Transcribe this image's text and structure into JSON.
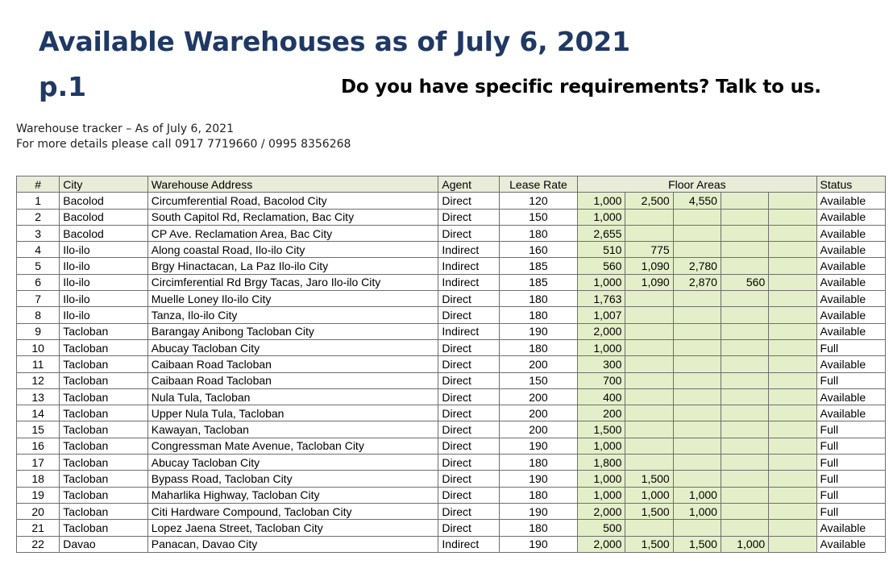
{
  "header": {
    "title": "Available Warehouses as of July 6, 2021",
    "page": "p.1",
    "cta": "Do you have specific requirements? Talk to us."
  },
  "tracker": {
    "line1": "Warehouse tracker – As of July 6, 2021",
    "line2": "For more details please call 0917 7719660 / 0995 8356268"
  },
  "table": {
    "headers": [
      "#",
      "City",
      "Warehouse Address",
      "Agent",
      "Lease Rate",
      "Floor Areas",
      "Status"
    ],
    "rows": [
      {
        "num": "1",
        "city": "Bacolod",
        "address": "Circumferential Road, Bacolod City",
        "agent": "Direct",
        "rate": "120",
        "areas": [
          "1,000",
          "2,500",
          "4,550",
          "",
          ""
        ],
        "status": "Available"
      },
      {
        "num": "2",
        "city": "Bacolod",
        "address": "South Capitol Rd, Reclamation, Bac City",
        "agent": "Direct",
        "rate": "150",
        "areas": [
          "1,000",
          "",
          "",
          "",
          ""
        ],
        "status": "Available"
      },
      {
        "num": "3",
        "city": "Bacolod",
        "address": "CP Ave. Reclamation Area, Bac City",
        "agent": "Direct",
        "rate": "180",
        "areas": [
          "2,655",
          "",
          "",
          "",
          ""
        ],
        "status": "Available"
      },
      {
        "num": "4",
        "city": "Ilo-ilo",
        "address": "Along coastal Road, Ilo-ilo City",
        "agent": "Indirect",
        "rate": "160",
        "areas": [
          "510",
          "775",
          "",
          "",
          ""
        ],
        "status": "Available"
      },
      {
        "num": "5",
        "city": "Ilo-ilo",
        "address": "Brgy Hinactacan, La Paz Ilo-ilo City",
        "agent": "Indirect",
        "rate": "185",
        "areas": [
          "560",
          "1,090",
          "2,780",
          "",
          ""
        ],
        "status": "Available"
      },
      {
        "num": "6",
        "city": "Ilo-ilo",
        "address": "Circimferential Rd Brgy Tacas, Jaro Ilo-ilo City",
        "agent": "Indirect",
        "rate": "185",
        "areas": [
          "1,000",
          "1,090",
          "2,870",
          "560",
          ""
        ],
        "status": "Available"
      },
      {
        "num": "7",
        "city": "Ilo-ilo",
        "address": "Muelle Loney Ilo-ilo City",
        "agent": "Direct",
        "rate": "180",
        "areas": [
          "1,763",
          "",
          "",
          "",
          ""
        ],
        "status": "Available"
      },
      {
        "num": "8",
        "city": "Ilo-ilo",
        "address": "Tanza, Ilo-ilo City",
        "agent": "Direct",
        "rate": "180",
        "areas": [
          "1,007",
          "",
          "",
          "",
          ""
        ],
        "status": "Available"
      },
      {
        "num": "9",
        "city": "Tacloban",
        "address": "Barangay Anibong Tacloban City",
        "agent": "Indirect",
        "rate": "190",
        "areas": [
          "2,000",
          "",
          "",
          "",
          ""
        ],
        "status": "Available"
      },
      {
        "num": "10",
        "city": "Tacloban",
        "address": "Abucay Tacloban City",
        "agent": "Direct",
        "rate": "180",
        "areas": [
          "1,000",
          "",
          "",
          "",
          ""
        ],
        "status": "Full"
      },
      {
        "num": "11",
        "city": "Tacloban",
        "address": "Caibaan Road Tacloban",
        "agent": "Direct",
        "rate": "200",
        "areas": [
          "300",
          "",
          "",
          "",
          ""
        ],
        "status": "Available"
      },
      {
        "num": "12",
        "city": "Tacloban",
        "address": "Caibaan Road Tacloban",
        "agent": "Direct",
        "rate": "150",
        "areas": [
          "700",
          "",
          "",
          "",
          ""
        ],
        "status": "Full"
      },
      {
        "num": "13",
        "city": "Tacloban",
        "address": "Nula Tula, Tacloban",
        "agent": "Direct",
        "rate": "200",
        "areas": [
          "400",
          "",
          "",
          "",
          ""
        ],
        "status": "Available"
      },
      {
        "num": "14",
        "city": "Tacloban",
        "address": "Upper Nula Tula, Tacloban",
        "agent": "Direct",
        "rate": "200",
        "areas": [
          "200",
          "",
          "",
          "",
          ""
        ],
        "status": "Available"
      },
      {
        "num": "15",
        "city": "Tacloban",
        "address": "Kawayan, Tacloban",
        "agent": "Direct",
        "rate": "200",
        "areas": [
          "1,500",
          "",
          "",
          "",
          ""
        ],
        "status": "Full"
      },
      {
        "num": "16",
        "city": "Tacloban",
        "address": "Congressman Mate Avenue, Tacloban City",
        "agent": "Direct",
        "rate": "190",
        "areas": [
          "1,000",
          "",
          "",
          "",
          ""
        ],
        "status": "Full"
      },
      {
        "num": "17",
        "city": "Tacloban",
        "address": "Abucay Tacloban City",
        "agent": "Direct",
        "rate": "180",
        "areas": [
          "1,800",
          "",
          "",
          "",
          ""
        ],
        "status": "Full"
      },
      {
        "num": "18",
        "city": "Tacloban",
        "address": "Bypass Road, Tacloban City",
        "agent": "Direct",
        "rate": "190",
        "areas": [
          "1,000",
          "1,500",
          "",
          "",
          ""
        ],
        "status": "Full"
      },
      {
        "num": "19",
        "city": "Tacloban",
        "address": "Maharlika Highway, Tacloban City",
        "agent": "Direct",
        "rate": "180",
        "areas": [
          "1,000",
          "1,000",
          "1,000",
          "",
          ""
        ],
        "status": "Full"
      },
      {
        "num": "20",
        "city": "Tacloban",
        "address": "Citi Hardware Compound, Tacloban City",
        "agent": "Direct",
        "rate": "190",
        "areas": [
          "2,000",
          "1,500",
          "1,000",
          "",
          ""
        ],
        "status": "Full"
      },
      {
        "num": "21",
        "city": "Tacloban",
        "address": "Lopez Jaena Street, Tacloban City",
        "agent": "Direct",
        "rate": "180",
        "areas": [
          "500",
          "",
          "",
          "",
          ""
        ],
        "status": "Available"
      },
      {
        "num": "22",
        "city": "Davao",
        "address": "Panacan, Davao City",
        "agent": "Indirect",
        "rate": "190",
        "areas": [
          "2,000",
          "1,500",
          "1,500",
          "1,000",
          ""
        ],
        "status": "Available"
      }
    ]
  }
}
